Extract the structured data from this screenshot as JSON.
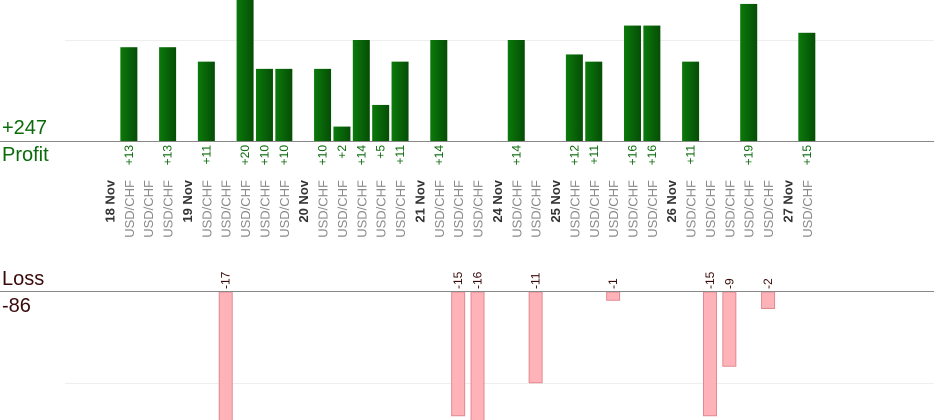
{
  "summary": {
    "profit_total": "+247",
    "profit_label": "Profit",
    "loss_label": "Loss",
    "loss_total": "-86"
  },
  "colors": {
    "profit_bar_top": "#0a7a0a",
    "profit_bar_bottom": "#064d06",
    "profit_text": "#0a6b0a",
    "loss_bar": "#ffb3b8",
    "loss_bar_border": "#e08a90",
    "loss_text": "#3a0a0a",
    "symbol_text": "#8a8a8a",
    "date_text": "#333333",
    "axis": "#888888",
    "grid": "#eeeeee"
  },
  "chart_data": {
    "type": "bar",
    "symbol": "USD/CHF",
    "slots": [
      {
        "kind": "date",
        "label": "18 Nov"
      },
      {
        "kind": "trade",
        "profit": 13,
        "label": "+13"
      },
      {
        "kind": "trade",
        "loss": null
      },
      {
        "kind": "trade",
        "profit": 13,
        "label": "+13"
      },
      {
        "kind": "date",
        "label": "19 Nov"
      },
      {
        "kind": "trade",
        "profit": 11,
        "label": "+11"
      },
      {
        "kind": "trade",
        "loss": -17,
        "label": "-17"
      },
      {
        "kind": "trade",
        "profit": 20,
        "label": "+20"
      },
      {
        "kind": "trade",
        "profit": 10,
        "label": "+10"
      },
      {
        "kind": "trade",
        "profit": 10,
        "label": "+10"
      },
      {
        "kind": "date",
        "label": "20 Nov"
      },
      {
        "kind": "trade",
        "profit": 10,
        "label": "+10"
      },
      {
        "kind": "trade",
        "profit": 2,
        "label": "+2"
      },
      {
        "kind": "trade",
        "profit": 14,
        "label": "+14"
      },
      {
        "kind": "trade",
        "profit": 5,
        "label": "+5"
      },
      {
        "kind": "trade",
        "profit": 11,
        "label": "+11"
      },
      {
        "kind": "date",
        "label": "21 Nov"
      },
      {
        "kind": "trade",
        "profit": 14,
        "label": "+14"
      },
      {
        "kind": "trade",
        "loss": -15,
        "label": "-15"
      },
      {
        "kind": "trade",
        "loss": -16,
        "label": "-16"
      },
      {
        "kind": "date",
        "label": "24 Nov"
      },
      {
        "kind": "trade",
        "profit": 14,
        "label": "+14"
      },
      {
        "kind": "trade",
        "loss": -11,
        "label": "-11"
      },
      {
        "kind": "date",
        "label": "25 Nov"
      },
      {
        "kind": "trade",
        "profit": 12,
        "label": "+12"
      },
      {
        "kind": "trade",
        "profit": 11,
        "label": "+11"
      },
      {
        "kind": "trade",
        "loss": -1,
        "label": "-1"
      },
      {
        "kind": "trade",
        "profit": 16,
        "label": "+16"
      },
      {
        "kind": "trade",
        "profit": 16,
        "label": "+16"
      },
      {
        "kind": "date",
        "label": "26 Nov"
      },
      {
        "kind": "trade",
        "profit": 11,
        "label": "+11"
      },
      {
        "kind": "trade",
        "loss": -15,
        "label": "-15"
      },
      {
        "kind": "trade",
        "loss": -9,
        "label": "-9"
      },
      {
        "kind": "trade",
        "profit": 19,
        "label": "+19"
      },
      {
        "kind": "trade",
        "loss": -2,
        "label": "-2"
      },
      {
        "kind": "date",
        "label": "27 Nov"
      },
      {
        "kind": "trade",
        "profit": 15,
        "label": "+15"
      }
    ],
    "profit_ylim": [
      0,
      14
    ],
    "loss_ylim": [
      -12,
      0
    ],
    "grid": true
  }
}
